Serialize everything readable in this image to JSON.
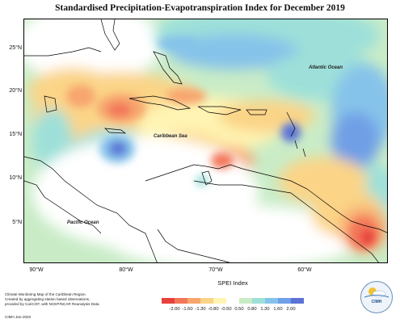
{
  "title": "Standardised Precipitation-Evapotranspiration Index for December 2019",
  "labels": {
    "atlantic": "Atlantic Ocean",
    "caribbean": "Caribbean Sea",
    "pacific": "Pacific Ocean"
  },
  "axes": {
    "y_ticks": [
      "25°N",
      "20°N",
      "15°N",
      "10°N",
      "5°N"
    ],
    "x_ticks": [
      "90°W",
      "80°W",
      "70°W",
      "60°W"
    ]
  },
  "legend": {
    "title": "SPEI Index",
    "ticks": [
      "-2.00",
      "-1.60",
      "-1.30",
      "-0.80",
      "-0.50",
      "0.50",
      "0.80",
      "1.30",
      "1.60",
      "2.00"
    ],
    "colors": [
      "#e8413b",
      "#f2775a",
      "#f7a66e",
      "#fbd487",
      "#fff4b3",
      "#ffffff",
      "#c9ecc7",
      "#9ee0d9",
      "#86c3ea",
      "#6f9fe6",
      "#5b73d6"
    ]
  },
  "credits": {
    "line1": "Climate Monitoring Map of the Caribbean Region.",
    "line2": "Created by aggregating station based observations,",
    "line3": "provided by CariCOF, with NCEP/NCAR Reanalysis Data.",
    "copyright": "CIMH Jan-2020"
  },
  "logo": {
    "text": "CIMH"
  }
}
